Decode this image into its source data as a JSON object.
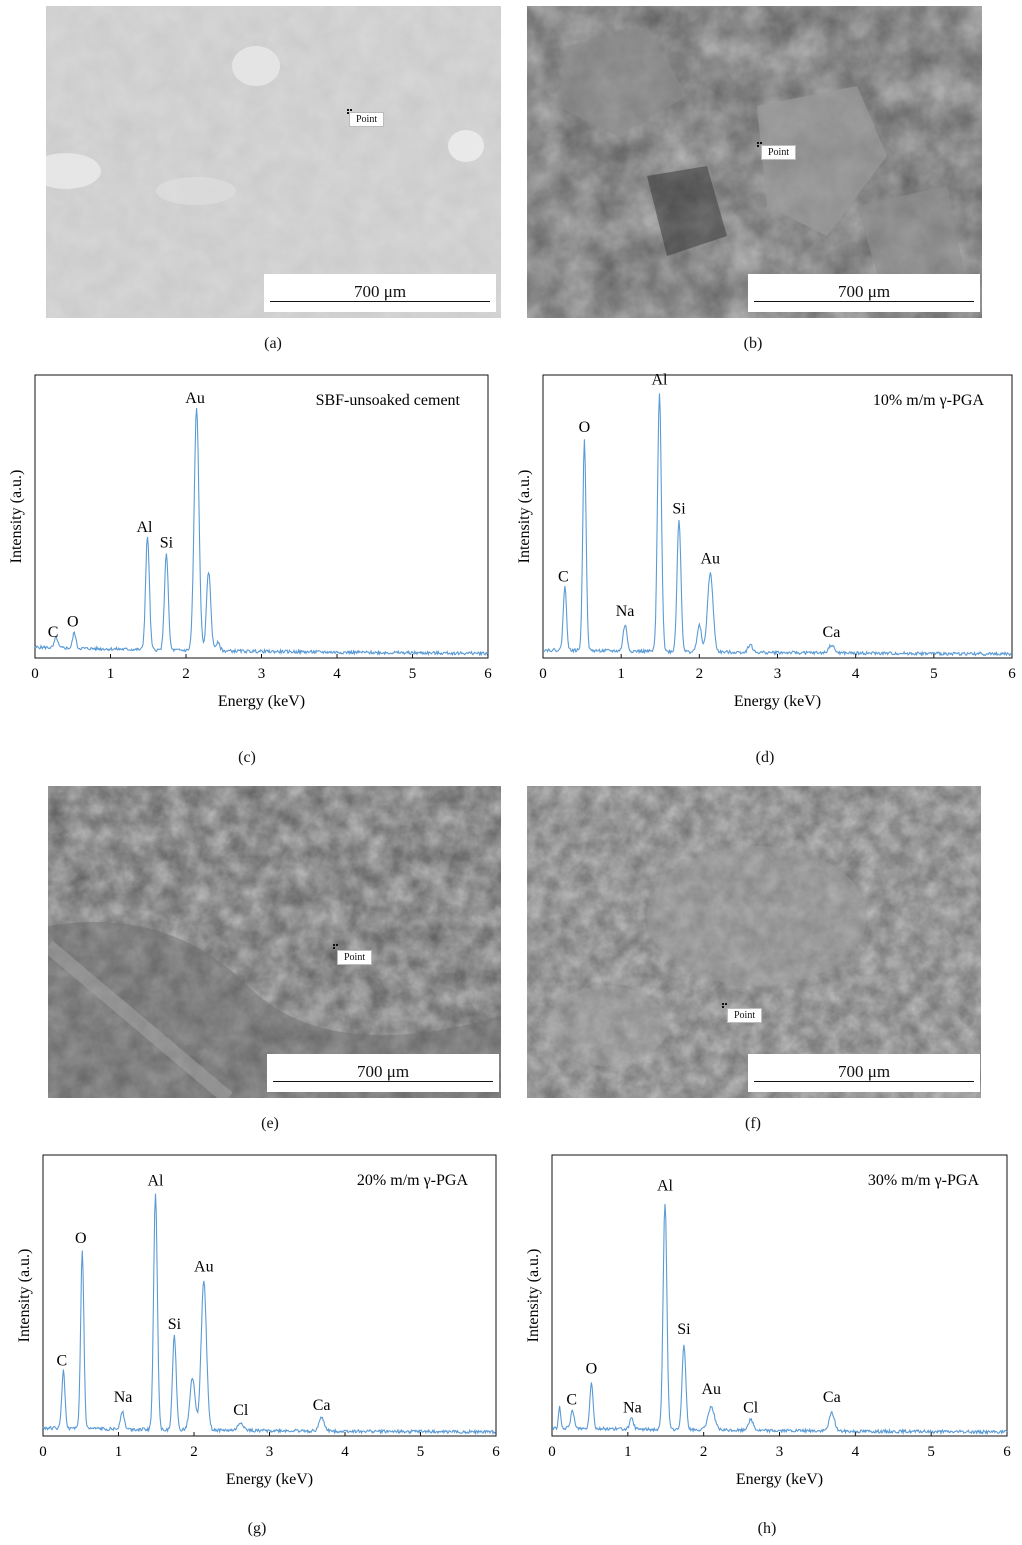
{
  "panels": {
    "a": {
      "label": "(a)",
      "scale": "700 μm",
      "point": "Point"
    },
    "b": {
      "label": "(b)",
      "scale": "700 μm",
      "point": "Point"
    },
    "c": {
      "label": "(c)"
    },
    "d": {
      "label": "(d)"
    },
    "e": {
      "label": "(e)",
      "scale": "700 μm",
      "point": "Point"
    },
    "f": {
      "label": "(f)",
      "scale": "700 μm",
      "point": "Point"
    },
    "g": {
      "label": "(g)"
    },
    "h": {
      "label": "(h)"
    }
  },
  "colors": {
    "spectrum": "#5b9bd5",
    "axis": "#111111"
  },
  "chart_data": [
    {
      "id": "c",
      "type": "line",
      "title": "SBF-unsoaked cement",
      "xlabel": "Energy (keV)",
      "ylabel": "Intensity (a.u.)",
      "xlim": [
        0,
        6
      ],
      "xticks": [
        0,
        1,
        2,
        3,
        4,
        5,
        6
      ],
      "ylim": [
        0,
        100
      ],
      "baseline": 3,
      "peaks": [
        {
          "label": "C",
          "x": 0.28,
          "h": 4,
          "w": 0.03
        },
        {
          "label": "O",
          "x": 0.52,
          "h": 6,
          "w": 0.03
        },
        {
          "label": "Al",
          "x": 1.49,
          "h": 43,
          "w": 0.035
        },
        {
          "label": "Si",
          "x": 1.74,
          "h": 37,
          "w": 0.035
        },
        {
          "label": "Au",
          "x": 2.14,
          "h": 92,
          "w": 0.045
        },
        {
          "label": "",
          "x": 2.3,
          "h": 30,
          "w": 0.04
        },
        {
          "label": "",
          "x": 2.42,
          "h": 3,
          "w": 0.04
        }
      ],
      "annotations": [
        {
          "text": "C",
          "x": 0.24,
          "y": 8
        },
        {
          "text": "O",
          "x": 0.5,
          "y": 12
        },
        {
          "text": "Al",
          "x": 1.45,
          "y": 48
        },
        {
          "text": "Si",
          "x": 1.74,
          "y": 42
        },
        {
          "text": "Au",
          "x": 2.12,
          "y": 97
        }
      ]
    },
    {
      "id": "d",
      "type": "line",
      "title": "10% m/m γ-PGA",
      "xlabel": "Energy (keV)",
      "ylabel": "Intensity (a.u.)",
      "xlim": [
        0,
        6
      ],
      "xticks": [
        0,
        1,
        2,
        3,
        4,
        5,
        6
      ],
      "ylim": [
        0,
        100
      ],
      "baseline": 2,
      "peaks": [
        {
          "label": "C",
          "x": 0.28,
          "h": 24,
          "w": 0.03
        },
        {
          "label": "O",
          "x": 0.53,
          "h": 80,
          "w": 0.03
        },
        {
          "label": "Na",
          "x": 1.05,
          "h": 10,
          "w": 0.035
        },
        {
          "label": "Al",
          "x": 1.49,
          "h": 98,
          "w": 0.035
        },
        {
          "label": "Si",
          "x": 1.74,
          "h": 50,
          "w": 0.035
        },
        {
          "label": "Au",
          "x": 2.14,
          "h": 30,
          "w": 0.05
        },
        {
          "label": "",
          "x": 2.0,
          "h": 10,
          "w": 0.04
        },
        {
          "label": "",
          "x": 2.65,
          "h": 3,
          "w": 0.04
        },
        {
          "label": "Ca",
          "x": 3.69,
          "h": 3,
          "w": 0.05
        }
      ],
      "annotations": [
        {
          "text": "C",
          "x": 0.26,
          "y": 29
        },
        {
          "text": "O",
          "x": 0.53,
          "y": 86
        },
        {
          "text": "Na",
          "x": 1.05,
          "y": 16
        },
        {
          "text": "Al",
          "x": 1.49,
          "y": 104
        },
        {
          "text": "Si",
          "x": 1.74,
          "y": 55
        },
        {
          "text": "Au",
          "x": 2.14,
          "y": 36
        },
        {
          "text": "Ca",
          "x": 3.69,
          "y": 8
        }
      ]
    },
    {
      "id": "g",
      "type": "line",
      "title": "20% m/m γ-PGA",
      "xlabel": "Energy (keV)",
      "ylabel": "Intensity (a.u.)",
      "xlim": [
        0,
        6
      ],
      "xticks": [
        0,
        1,
        2,
        3,
        4,
        5,
        6
      ],
      "ylim": [
        0,
        100
      ],
      "baseline": 2,
      "peaks": [
        {
          "label": "C",
          "x": 0.27,
          "h": 22,
          "w": 0.03
        },
        {
          "label": "O",
          "x": 0.52,
          "h": 68,
          "w": 0.03
        },
        {
          "label": "Na",
          "x": 1.05,
          "h": 7,
          "w": 0.035
        },
        {
          "label": "Al",
          "x": 1.49,
          "h": 90,
          "w": 0.035
        },
        {
          "label": "Si",
          "x": 1.74,
          "h": 36,
          "w": 0.035
        },
        {
          "label": "Au",
          "x": 2.13,
          "h": 57,
          "w": 0.05
        },
        {
          "label": "",
          "x": 1.98,
          "h": 20,
          "w": 0.05
        },
        {
          "label": "Cl",
          "x": 2.62,
          "h": 3,
          "w": 0.05
        },
        {
          "label": "Ca",
          "x": 3.69,
          "h": 5,
          "w": 0.05
        }
      ],
      "annotations": [
        {
          "text": "C",
          "x": 0.25,
          "y": 27
        },
        {
          "text": "O",
          "x": 0.5,
          "y": 74
        },
        {
          "text": "Na",
          "x": 1.06,
          "y": 13
        },
        {
          "text": "Al",
          "x": 1.49,
          "y": 96
        },
        {
          "text": "Si",
          "x": 1.74,
          "y": 41
        },
        {
          "text": "Au",
          "x": 2.13,
          "y": 63
        },
        {
          "text": "Cl",
          "x": 2.62,
          "y": 8
        },
        {
          "text": "Ca",
          "x": 3.69,
          "y": 10
        }
      ]
    },
    {
      "id": "h",
      "type": "line",
      "title": "30% m/m γ-PGA",
      "xlabel": "Energy (keV)",
      "ylabel": "Intensity (a.u.)",
      "xlim": [
        0,
        6
      ],
      "xticks": [
        0,
        1,
        2,
        3,
        4,
        5,
        6
      ],
      "ylim": [
        0,
        100
      ],
      "baseline": 2,
      "peaks": [
        {
          "label": "",
          "x": 0.1,
          "h": 8,
          "w": 0.02
        },
        {
          "label": "C",
          "x": 0.27,
          "h": 7,
          "w": 0.03
        },
        {
          "label": "O",
          "x": 0.52,
          "h": 18,
          "w": 0.03
        },
        {
          "label": "Na",
          "x": 1.05,
          "h": 4,
          "w": 0.035
        },
        {
          "label": "Al",
          "x": 1.49,
          "h": 87,
          "w": 0.035
        },
        {
          "label": "Si",
          "x": 1.74,
          "h": 33,
          "w": 0.035
        },
        {
          "label": "Au",
          "x": 2.1,
          "h": 9,
          "w": 0.06
        },
        {
          "label": "Cl",
          "x": 2.62,
          "h": 4,
          "w": 0.05
        },
        {
          "label": "Ca",
          "x": 3.69,
          "h": 7,
          "w": 0.05
        }
      ],
      "annotations": [
        {
          "text": "C",
          "x": 0.26,
          "y": 12
        },
        {
          "text": "O",
          "x": 0.52,
          "y": 24
        },
        {
          "text": "Na",
          "x": 1.06,
          "y": 9
        },
        {
          "text": "Al",
          "x": 1.49,
          "y": 94
        },
        {
          "text": "Si",
          "x": 1.74,
          "y": 39
        },
        {
          "text": "Au",
          "x": 2.1,
          "y": 16
        },
        {
          "text": "Cl",
          "x": 2.62,
          "y": 9
        },
        {
          "text": "Ca",
          "x": 3.69,
          "y": 13
        }
      ]
    }
  ]
}
